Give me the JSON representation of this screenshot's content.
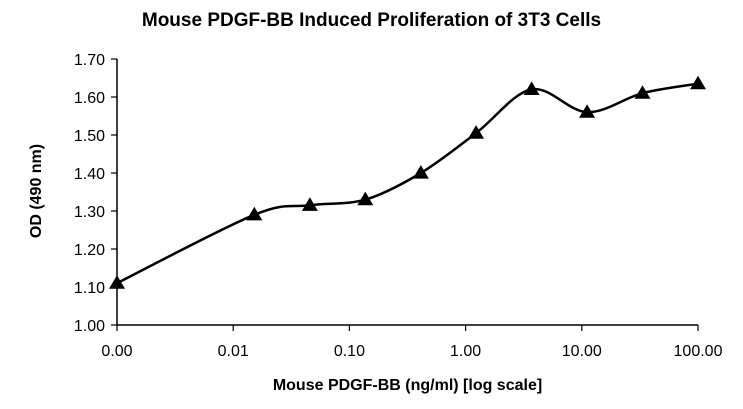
{
  "chart_data": {
    "type": "line",
    "title": "Mouse PDGF-BB Induced Proliferation of 3T3 Cells",
    "xlabel": "Mouse PDGF-BB (ng/ml) [log scale]",
    "ylabel": "OD (490 nm)",
    "x_scale": "log",
    "x_tick_labels": [
      "0.00",
      "0.01",
      "0.10",
      "1.00",
      "10.00",
      "100.00"
    ],
    "y_tick_labels": [
      "1.00",
      "1.10",
      "1.20",
      "1.30",
      "1.40",
      "1.50",
      "1.60",
      "1.70"
    ],
    "ylim": [
      1.0,
      1.7
    ],
    "grid": false,
    "marker": "triangle",
    "line_color": "#000000",
    "series": [
      {
        "x": [
          0.001,
          0.0152,
          0.0457,
          0.137,
          0.412,
          1.23,
          3.7,
          11.1,
          33.3,
          100
        ],
        "values": [
          1.11,
          1.29,
          1.315,
          1.33,
          1.4,
          1.505,
          1.62,
          1.56,
          1.61,
          1.635
        ]
      }
    ]
  }
}
